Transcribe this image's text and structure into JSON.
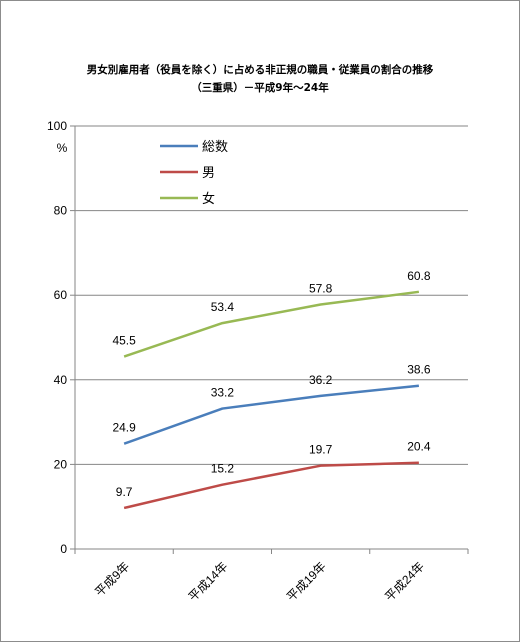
{
  "chart_data": {
    "type": "line",
    "title_line1": "男女別雇用者（役員を除く）に占める非正規の職員・従業員の割合の推移",
    "title_line2": "（三重県）－平成9年～24年",
    "ylabel": "%",
    "ylim": [
      0,
      100
    ],
    "yticks": [
      "0",
      "20",
      "40",
      "60",
      "80",
      "100"
    ],
    "categories": [
      "平成9年",
      "平成14年",
      "平成19年",
      "平成24年"
    ],
    "grid": true,
    "legend_position": "top-left",
    "series": [
      {
        "name": "総数",
        "color": "#4a7ebb",
        "values": [
          24.9,
          33.2,
          36.2,
          38.6
        ],
        "labels": [
          "24.9",
          "33.2",
          "36.2",
          "38.6"
        ]
      },
      {
        "name": "男",
        "color": "#be4b48",
        "values": [
          9.7,
          15.2,
          19.7,
          20.4
        ],
        "labels": [
          "9.7",
          "15.2",
          "19.7",
          "20.4"
        ]
      },
      {
        "name": "女",
        "color": "#98b954",
        "values": [
          45.5,
          53.4,
          57.8,
          60.8
        ],
        "labels": [
          "45.5",
          "53.4",
          "57.8",
          "60.8"
        ]
      }
    ]
  }
}
